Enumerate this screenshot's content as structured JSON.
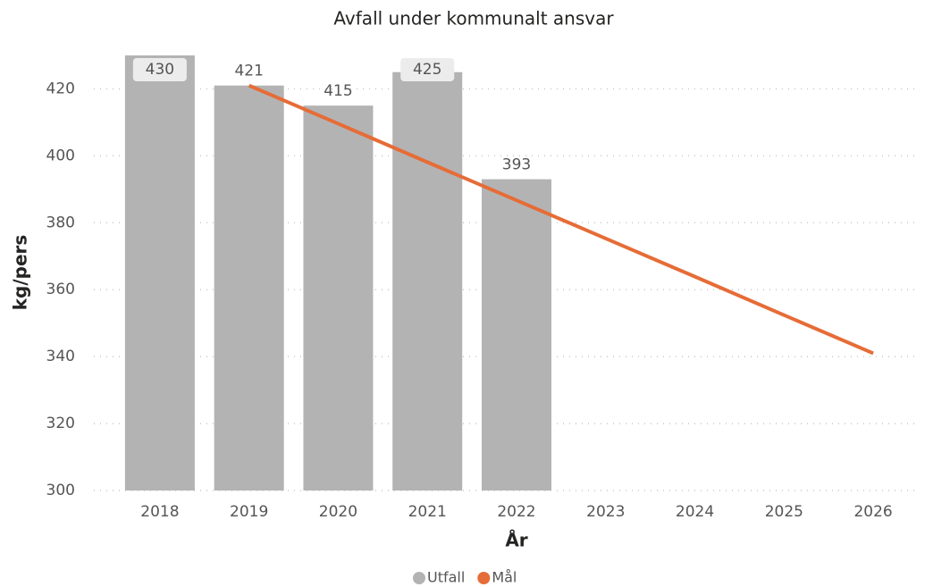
{
  "chart_data": {
    "type": "bar",
    "title": "Avfall under kommunalt ansvar",
    "x_label": "År",
    "y_label": "kg/pers",
    "categories": [
      "2018",
      "2019",
      "2020",
      "2021",
      "2022",
      "2023",
      "2024",
      "2025",
      "2026"
    ],
    "series": [
      {
        "name": "Utfall",
        "type": "bar",
        "color": "#b3b3b3",
        "values": [
          430,
          421,
          415,
          425,
          393,
          null,
          null,
          null,
          null
        ]
      },
      {
        "name": "Mål",
        "type": "line",
        "color": "#e66c37",
        "values": [
          null,
          421,
          409.6,
          398.1,
          386.7,
          375.3,
          363.9,
          352.4,
          341
        ]
      }
    ],
    "ylim": [
      300,
      430
    ],
    "yticks": [
      300,
      320,
      340,
      360,
      380,
      400,
      420
    ],
    "grid": true,
    "legend": "bottom"
  }
}
